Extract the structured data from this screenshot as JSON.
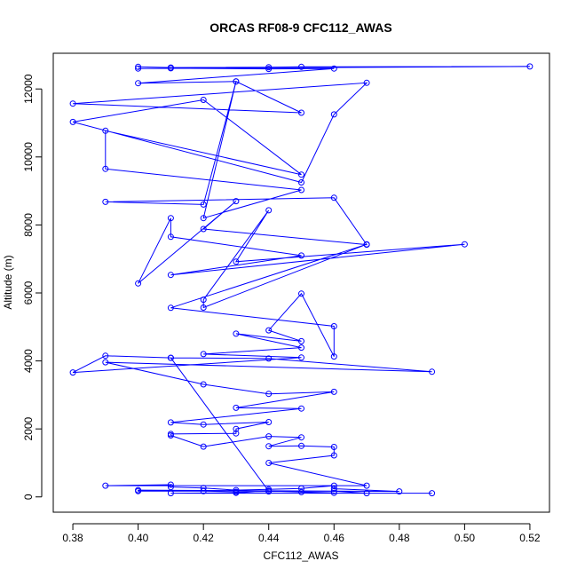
{
  "chart_data": {
    "type": "line",
    "title": "ORCAS RF08-9 CFC112_AWAS",
    "xlabel": "CFC112_AWAS",
    "ylabel": "Altitude (m)",
    "xlim": [
      0.374,
      0.526
    ],
    "ylim": [
      -450,
      13050
    ],
    "x_ticks": [
      0.38,
      0.4,
      0.42,
      0.44,
      0.46,
      0.48,
      0.5,
      0.52
    ],
    "x_tick_labels": [
      "0.38",
      "0.40",
      "0.42",
      "0.44",
      "0.46",
      "0.48",
      "0.50",
      "0.52"
    ],
    "y_ticks": [
      0,
      2000,
      4000,
      6000,
      8000,
      10000,
      12000
    ],
    "y_tick_labels": [
      "0",
      "2000",
      "4000",
      "6000",
      "8000",
      "10000",
      "12000"
    ],
    "grid": false,
    "series": [
      {
        "color": "#0000ff",
        "points": [
          [
            0.4,
            12650
          ],
          [
            0.41,
            12630
          ],
          [
            0.44,
            12640
          ],
          [
            0.45,
            12650
          ],
          [
            0.52,
            12660
          ],
          [
            0.4,
            12600
          ],
          [
            0.41,
            12610
          ],
          [
            0.44,
            12590
          ],
          [
            0.46,
            12600
          ],
          [
            0.4,
            12170
          ],
          [
            0.43,
            12220
          ],
          [
            0.45,
            11300
          ],
          [
            0.38,
            11570
          ],
          [
            0.47,
            12180
          ],
          [
            0.46,
            11250
          ],
          [
            0.45,
            9250
          ],
          [
            0.38,
            11030
          ],
          [
            0.42,
            11680
          ],
          [
            0.45,
            9480
          ],
          [
            0.39,
            10770
          ],
          [
            0.39,
            9650
          ],
          [
            0.45,
            9030
          ],
          [
            0.42,
            8200
          ],
          [
            0.43,
            12220
          ],
          [
            0.42,
            8600
          ],
          [
            0.39,
            8680
          ],
          [
            0.46,
            8800
          ],
          [
            0.47,
            7420
          ],
          [
            0.42,
            7880
          ],
          [
            0.43,
            8700
          ],
          [
            0.4,
            6280
          ],
          [
            0.41,
            8200
          ],
          [
            0.41,
            7650
          ],
          [
            0.45,
            7100
          ],
          [
            0.41,
            6530
          ],
          [
            0.5,
            7430
          ],
          [
            0.43,
            6920
          ],
          [
            0.44,
            8430
          ],
          [
            0.42,
            5800
          ],
          [
            0.42,
            5570
          ],
          [
            0.47,
            7430
          ],
          [
            0.41,
            5560
          ],
          [
            0.46,
            5020
          ],
          [
            0.46,
            4130
          ],
          [
            0.45,
            5980
          ],
          [
            0.44,
            4900
          ],
          [
            0.45,
            4580
          ],
          [
            0.43,
            4800
          ],
          [
            0.45,
            4390
          ],
          [
            0.42,
            4200
          ],
          [
            0.45,
            4100
          ],
          [
            0.38,
            3660
          ],
          [
            0.39,
            4150
          ],
          [
            0.41,
            4090
          ],
          [
            0.44,
            4070
          ],
          [
            0.49,
            3680
          ],
          [
            0.39,
            3960
          ],
          [
            0.42,
            3310
          ],
          [
            0.44,
            3030
          ],
          [
            0.46,
            3090
          ],
          [
            0.43,
            2620
          ],
          [
            0.45,
            2600
          ],
          [
            0.41,
            2190
          ],
          [
            0.42,
            2130
          ],
          [
            0.44,
            2200
          ],
          [
            0.43,
            2000
          ],
          [
            0.43,
            1870
          ],
          [
            0.41,
            1850
          ],
          [
            0.41,
            1810
          ],
          [
            0.42,
            1480
          ],
          [
            0.44,
            1780
          ],
          [
            0.45,
            1750
          ],
          [
            0.44,
            1490
          ],
          [
            0.45,
            1500
          ],
          [
            0.46,
            1470
          ],
          [
            0.46,
            1220
          ],
          [
            0.44,
            1000
          ],
          [
            0.47,
            330
          ],
          [
            0.39,
            330
          ],
          [
            0.41,
            360
          ],
          [
            0.41,
            290
          ],
          [
            0.42,
            260
          ],
          [
            0.43,
            200
          ],
          [
            0.44,
            220
          ],
          [
            0.45,
            250
          ],
          [
            0.46,
            330
          ],
          [
            0.46,
            240
          ],
          [
            0.48,
            160
          ],
          [
            0.4,
            200
          ],
          [
            0.4,
            170
          ],
          [
            0.42,
            170
          ],
          [
            0.43,
            150
          ],
          [
            0.44,
            160
          ],
          [
            0.46,
            170
          ],
          [
            0.47,
            110
          ],
          [
            0.49,
            110
          ],
          [
            0.41,
            110
          ],
          [
            0.43,
            120
          ],
          [
            0.44,
            180
          ],
          [
            0.45,
            140
          ],
          [
            0.46,
            120
          ],
          [
            0.44,
            170
          ],
          [
            0.41,
            4090
          ]
        ]
      }
    ]
  }
}
